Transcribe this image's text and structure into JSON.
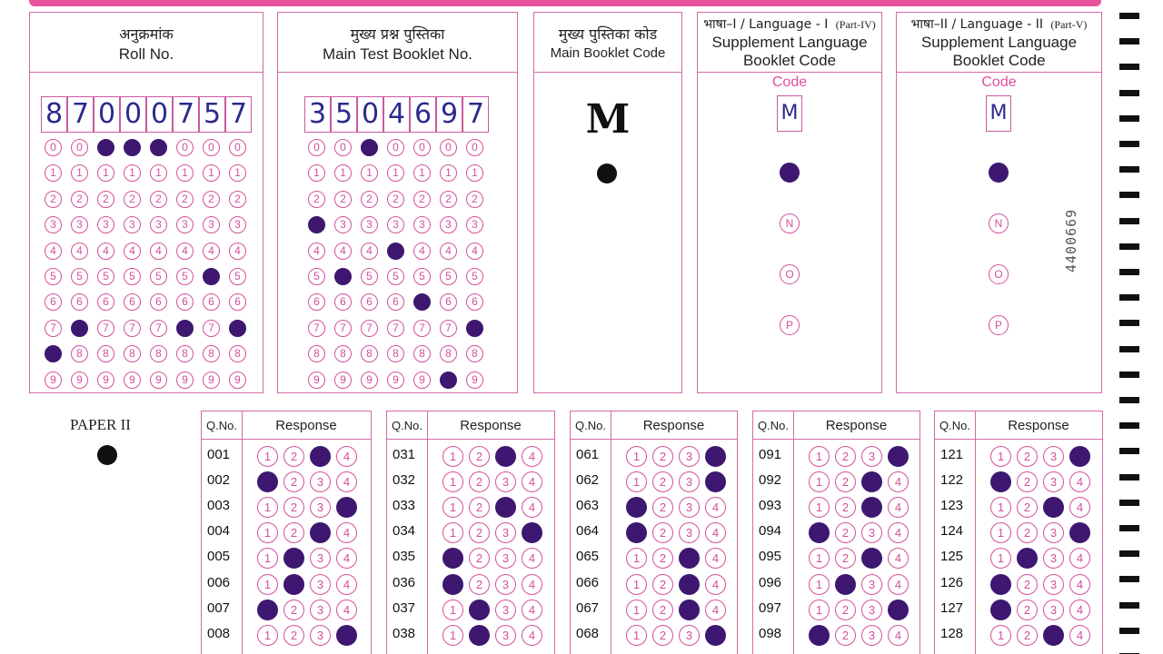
{
  "roll_no": {
    "label_hi": "अनुक्रमांक",
    "label_en": "Roll No.",
    "digits": [
      "8",
      "7",
      "0",
      "0",
      "0",
      "7",
      "5",
      "7"
    ]
  },
  "test_booklet": {
    "label_hi": "मुख्य प्रश्न पुस्तिका",
    "label_en": "Main Test Booklet No.",
    "digits": [
      "3",
      "5",
      "0",
      "4",
      "6",
      "9",
      "7"
    ]
  },
  "booklet_code": {
    "label_hi": "मुख्य पुस्तिका कोड",
    "label_en": "Main Booklet Code",
    "value": "M"
  },
  "language1": {
    "label_top": "भाषा–I / Language - I",
    "part": "(Part-IV)",
    "title_line1": "Supplement Language",
    "title_line2": "Booklet Code",
    "code_label": "Code",
    "code_value": "M",
    "options": [
      "M",
      "N",
      "O",
      "P"
    ],
    "selected": "M"
  },
  "language2": {
    "label_top": "भाषा–II / Language - II",
    "part": "(Part-V)",
    "title_line1": "Supplement Language",
    "title_line2": "Booklet Code",
    "code_label": "Code",
    "code_value": "M",
    "options": [
      "M",
      "N",
      "O",
      "P"
    ],
    "selected": "M"
  },
  "serial_number": "4400669",
  "paper_label": "PAPER II",
  "response_header": {
    "qno": "Q.No.",
    "response": "Response"
  },
  "response_options": [
    "1",
    "2",
    "3",
    "4"
  ],
  "response_columns": [
    {
      "questions": [
        {
          "q": "001",
          "answer": 3
        },
        {
          "q": "002",
          "answer": 1
        },
        {
          "q": "003",
          "answer": 4
        },
        {
          "q": "004",
          "answer": 3
        },
        {
          "q": "005",
          "answer": 2
        },
        {
          "q": "006",
          "answer": 2
        },
        {
          "q": "007",
          "answer": 1
        },
        {
          "q": "008",
          "answer": 4
        }
      ]
    },
    {
      "questions": [
        {
          "q": "031",
          "answer": 3
        },
        {
          "q": "032",
          "answer": null
        },
        {
          "q": "033",
          "answer": 3
        },
        {
          "q": "034",
          "answer": 4
        },
        {
          "q": "035",
          "answer": 1
        },
        {
          "q": "036",
          "answer": 1
        },
        {
          "q": "037",
          "answer": 2
        },
        {
          "q": "038",
          "answer": 2
        }
      ]
    },
    {
      "questions": [
        {
          "q": "061",
          "answer": 4
        },
        {
          "q": "062",
          "answer": 4
        },
        {
          "q": "063",
          "answer": 1
        },
        {
          "q": "064",
          "answer": 1
        },
        {
          "q": "065",
          "answer": 3
        },
        {
          "q": "066",
          "answer": 3
        },
        {
          "q": "067",
          "answer": 3
        },
        {
          "q": "068",
          "answer": 4
        }
      ]
    },
    {
      "questions": [
        {
          "q": "091",
          "answer": 4
        },
        {
          "q": "092",
          "answer": 3
        },
        {
          "q": "093",
          "answer": 3
        },
        {
          "q": "094",
          "answer": 1
        },
        {
          "q": "095",
          "answer": 3
        },
        {
          "q": "096",
          "answer": 2
        },
        {
          "q": "097",
          "answer": 4
        },
        {
          "q": "098",
          "answer": 1
        }
      ]
    },
    {
      "questions": [
        {
          "q": "121",
          "answer": 4
        },
        {
          "q": "122",
          "answer": 1
        },
        {
          "q": "123",
          "answer": 3
        },
        {
          "q": "124",
          "answer": 4
        },
        {
          "q": "125",
          "answer": 2
        },
        {
          "q": "126",
          "answer": 1
        },
        {
          "q": "127",
          "answer": 1
        },
        {
          "q": "128",
          "answer": 3
        }
      ]
    }
  ]
}
